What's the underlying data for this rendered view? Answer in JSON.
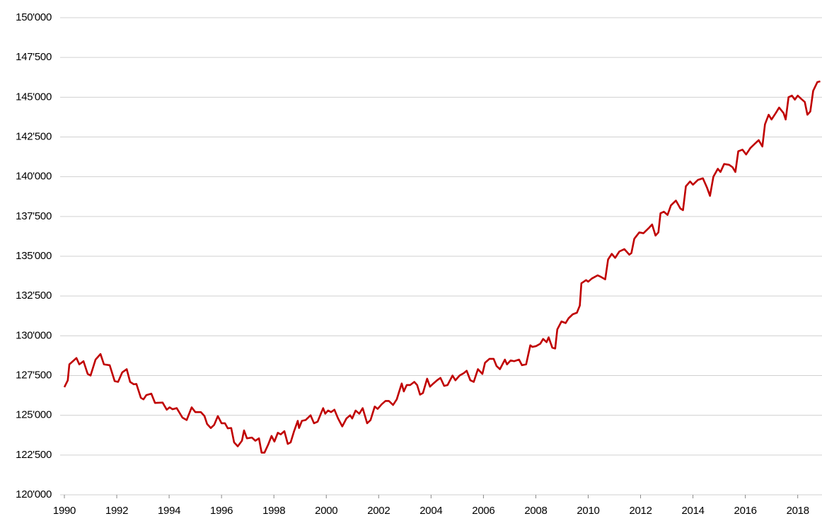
{
  "chart_data": {
    "type": "line",
    "x": [
      1990.0,
      1990.13,
      1990.19,
      1990.46,
      1990.57,
      1990.73,
      1990.89,
      1991.0,
      1991.19,
      1991.38,
      1991.51,
      1991.73,
      1991.92,
      1992.05,
      1992.21,
      1992.38,
      1992.51,
      1992.65,
      1992.75,
      1992.92,
      1993.02,
      1993.13,
      1993.32,
      1993.46,
      1993.75,
      1993.91,
      1994.02,
      1994.13,
      1994.29,
      1994.51,
      1994.67,
      1994.86,
      1995.0,
      1995.21,
      1995.35,
      1995.45,
      1995.59,
      1995.72,
      1995.86,
      1996.0,
      1996.13,
      1996.24,
      1996.37,
      1996.48,
      1996.62,
      1996.78,
      1996.86,
      1996.97,
      1997.16,
      1997.29,
      1997.43,
      1997.53,
      1997.64,
      1997.78,
      1997.91,
      1998.02,
      1998.15,
      1998.26,
      1998.4,
      1998.53,
      1998.64,
      1998.77,
      1998.91,
      1998.96,
      1999.07,
      1999.21,
      1999.4,
      1999.53,
      1999.67,
      1999.88,
      1999.96,
      2000.07,
      2000.18,
      2000.31,
      2000.45,
      2000.61,
      2000.77,
      2000.91,
      2000.99,
      2001.12,
      2001.26,
      2001.39,
      2001.56,
      2001.69,
      2001.85,
      2001.96,
      2002.12,
      2002.26,
      2002.39,
      2002.55,
      2002.69,
      2002.88,
      2002.96,
      2003.07,
      2003.2,
      2003.36,
      2003.47,
      2003.58,
      2003.69,
      2003.85,
      2003.96,
      2004.09,
      2004.23,
      2004.36,
      2004.5,
      2004.63,
      2004.82,
      2004.93,
      2005.09,
      2005.25,
      2005.36,
      2005.5,
      2005.63,
      2005.79,
      2005.96,
      2006.06,
      2006.23,
      2006.39,
      2006.5,
      2006.63,
      2006.82,
      2006.9,
      2007.04,
      2007.17,
      2007.36,
      2007.47,
      2007.63,
      2007.79,
      2007.87,
      2008.01,
      2008.17,
      2008.28,
      2008.41,
      2008.49,
      2008.63,
      2008.74,
      2008.82,
      2008.98,
      2009.14,
      2009.25,
      2009.41,
      2009.57,
      2009.68,
      2009.74,
      2009.92,
      2010.0,
      2010.14,
      2010.36,
      2010.49,
      2010.65,
      2010.76,
      2010.9,
      2011.03,
      2011.19,
      2011.38,
      2011.57,
      2011.65,
      2011.76,
      2011.95,
      2012.11,
      2012.33,
      2012.44,
      2012.57,
      2012.68,
      2012.76,
      2012.89,
      2013.03,
      2013.16,
      2013.35,
      2013.52,
      2013.62,
      2013.73,
      2013.89,
      2014.0,
      2014.19,
      2014.38,
      2014.54,
      2014.65,
      2014.78,
      2014.95,
      2015.05,
      2015.19,
      2015.38,
      2015.51,
      2015.62,
      2015.73,
      2015.89,
      2016.03,
      2016.19,
      2016.38,
      2016.51,
      2016.65,
      2016.75,
      2016.89,
      2017.0,
      2017.16,
      2017.29,
      2017.46,
      2017.54,
      2017.65,
      2017.78,
      2017.89,
      2018.0,
      2018.13,
      2018.27,
      2018.37,
      2018.48,
      2018.59,
      2018.75,
      2018.86
    ],
    "series": [
      {
        "color": "#c00000",
        "values": [
          126770,
          127200,
          128200,
          128600,
          128200,
          128400,
          127600,
          127500,
          128500,
          128850,
          128200,
          128150,
          127150,
          127100,
          127700,
          127900,
          127100,
          126950,
          126970,
          126100,
          126000,
          126270,
          126360,
          125780,
          125800,
          125350,
          125500,
          125380,
          125450,
          124850,
          124700,
          125500,
          125200,
          125200,
          124950,
          124450,
          124200,
          124400,
          124950,
          124500,
          124500,
          124180,
          124200,
          123300,
          123050,
          123400,
          124050,
          123550,
          123600,
          123400,
          123550,
          122650,
          122650,
          123150,
          123700,
          123350,
          123900,
          123800,
          124000,
          123200,
          123300,
          124000,
          124650,
          124200,
          124650,
          124700,
          125000,
          124500,
          124600,
          125450,
          125100,
          125300,
          125200,
          125350,
          124800,
          124300,
          124800,
          125000,
          124800,
          125300,
          125100,
          125450,
          124500,
          124700,
          125550,
          125400,
          125700,
          125900,
          125900,
          125650,
          126000,
          127000,
          126500,
          126900,
          126900,
          127100,
          126900,
          126300,
          126400,
          127300,
          126800,
          127000,
          127200,
          127350,
          126850,
          126900,
          127500,
          127200,
          127500,
          127650,
          127800,
          127200,
          127100,
          127900,
          127600,
          128300,
          128550,
          128550,
          128100,
          127900,
          128500,
          128200,
          128450,
          128400,
          128500,
          128150,
          128200,
          129400,
          129300,
          129350,
          129500,
          129800,
          129600,
          129900,
          129250,
          129200,
          130400,
          130900,
          130800,
          131100,
          131350,
          131450,
          131900,
          133300,
          133500,
          133400,
          133600,
          133800,
          133700,
          133550,
          134800,
          135150,
          134900,
          135300,
          135450,
          135100,
          135200,
          136100,
          136500,
          136450,
          136800,
          137000,
          136300,
          136500,
          137700,
          137800,
          137600,
          138200,
          138500,
          138000,
          137900,
          139400,
          139700,
          139500,
          139800,
          139900,
          139300,
          138800,
          140000,
          140500,
          140300,
          140800,
          140750,
          140600,
          140300,
          141600,
          141700,
          141400,
          141800,
          142100,
          142300,
          141900,
          143300,
          143900,
          143600,
          144000,
          144350,
          144000,
          143600,
          145000,
          145100,
          144850,
          145100,
          144900,
          144700,
          143900,
          144100,
          145400,
          145950,
          146000
        ]
      }
    ],
    "xlim": [
      1990,
      2018.9
    ],
    "xticks": [
      1990,
      1992,
      1994,
      1996,
      1998,
      2000,
      2002,
      2004,
      2006,
      2008,
      2010,
      2012,
      2014,
      2016,
      2018
    ],
    "ylim": [
      120000,
      150000
    ],
    "yticks": [
      {
        "value": 120000,
        "label": "120'000"
      },
      {
        "value": 122500,
        "label": "122'500"
      },
      {
        "value": 125000,
        "label": "125'000"
      },
      {
        "value": 127500,
        "label": "127'500"
      },
      {
        "value": 130000,
        "label": "130'000"
      },
      {
        "value": 132500,
        "label": "132'500"
      },
      {
        "value": 135000,
        "label": "135'000"
      },
      {
        "value": 137500,
        "label": "137'500"
      },
      {
        "value": 140000,
        "label": "140'000"
      },
      {
        "value": 142500,
        "label": "142'500"
      },
      {
        "value": 145000,
        "label": "145'000"
      },
      {
        "value": 147500,
        "label": "147'500"
      },
      {
        "value": 150000,
        "label": "150'000"
      }
    ],
    "grid": true
  }
}
